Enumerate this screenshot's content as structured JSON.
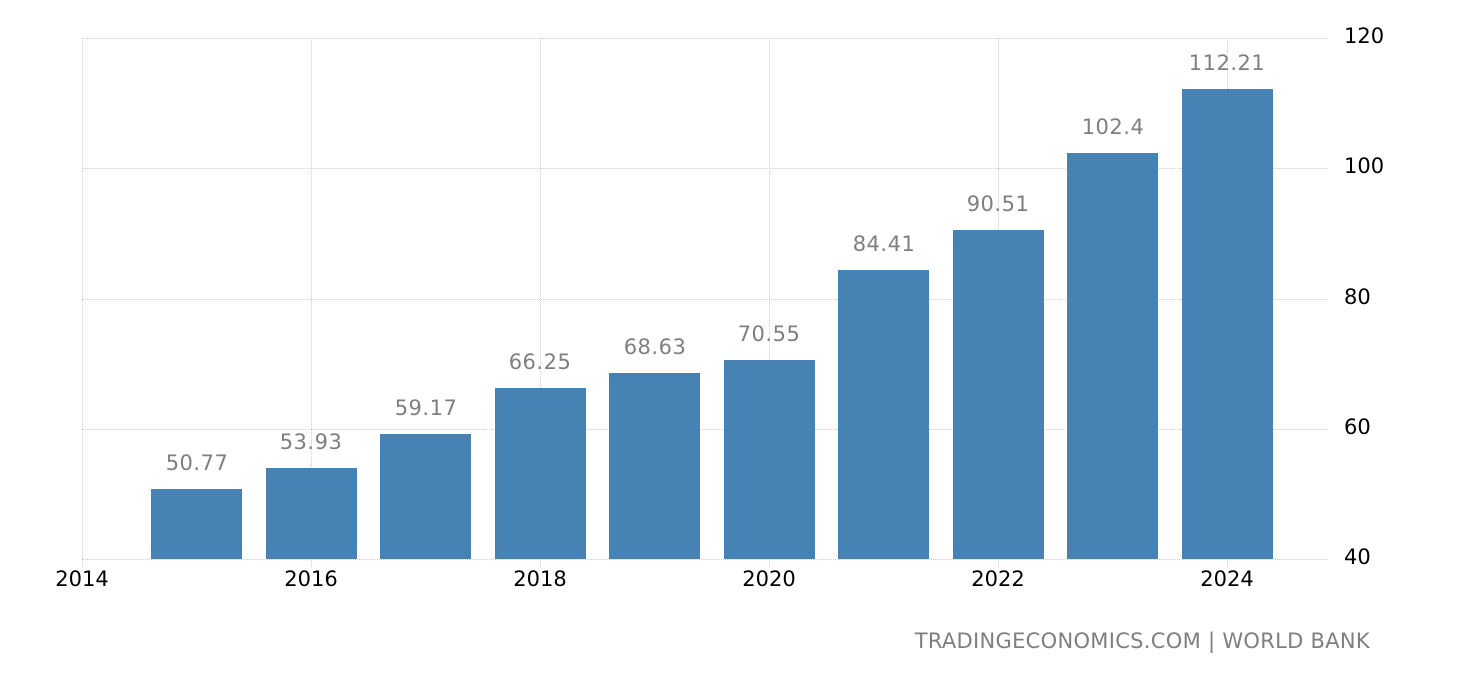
{
  "chart_data": {
    "type": "bar",
    "title": "",
    "xlabel": "",
    "ylabel": "",
    "categories": [
      "2015",
      "2016",
      "2017",
      "2018",
      "2019",
      "2020",
      "2021",
      "2022",
      "2023",
      "2024"
    ],
    "values": [
      50.77,
      53.93,
      59.17,
      66.25,
      68.63,
      70.55,
      84.41,
      90.51,
      102.4,
      112.21
    ],
    "value_labels": [
      "50.77",
      "53.93",
      "59.17",
      "66.25",
      "68.63",
      "70.55",
      "84.41",
      "90.51",
      "102.4",
      "112.21"
    ],
    "ylim": [
      40,
      120
    ],
    "yticks": [
      40,
      60,
      80,
      100,
      120
    ],
    "xticks": [
      "2014",
      "2016",
      "2018",
      "2020",
      "2022",
      "2024"
    ],
    "xlim": [
      2014,
      2024.9
    ],
    "y_axis_position": "right",
    "grid": true,
    "legend": null,
    "bar_color": "#4682b4",
    "label_color": "#7f7f7f"
  },
  "footer": {
    "source": "TRADINGECONOMICS.COM | WORLD BANK"
  }
}
